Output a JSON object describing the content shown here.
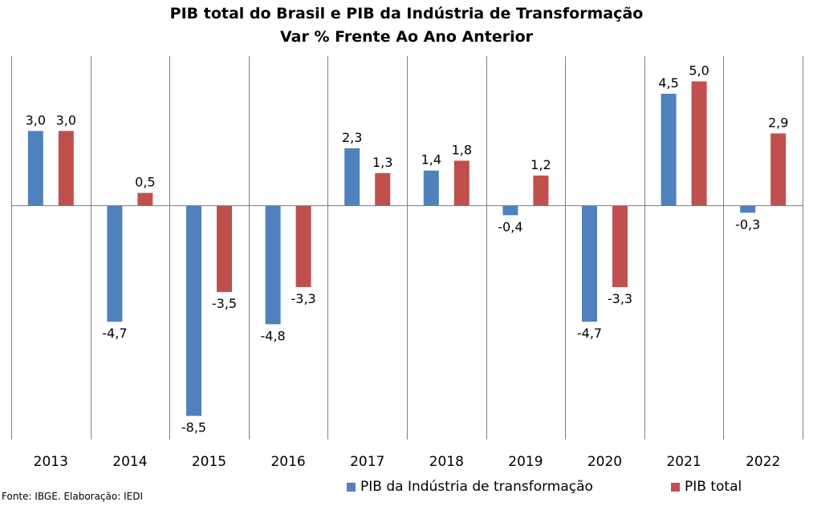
{
  "chart_data": {
    "type": "bar",
    "title": "PIB total do Brasil e PIB da Indústria de Transformação",
    "subtitle": "Var % Frente Ao Ano Anterior",
    "categories": [
      "2013",
      "2014",
      "2015",
      "2016",
      "2017",
      "2018",
      "2019",
      "2020",
      "2021",
      "2022"
    ],
    "series": [
      {
        "name": "PIB da Indústria de transformação",
        "color": "#4F81BD",
        "values": [
          3.0,
          -4.7,
          -8.5,
          -4.8,
          2.3,
          1.4,
          -0.4,
          -4.7,
          4.5,
          -0.3
        ],
        "labels": [
          "3,0",
          "-4,7",
          "-8,5",
          "-4,8",
          "2,3",
          "1,4",
          "-0,4",
          "-4,7",
          "4,5",
          "-0,3"
        ]
      },
      {
        "name": "PIB total",
        "color": "#C0504D",
        "values": [
          3.0,
          0.5,
          -3.5,
          -3.3,
          1.3,
          1.8,
          1.2,
          -3.3,
          5.0,
          2.9
        ],
        "labels": [
          "3,0",
          "0,5",
          "-3,5",
          "-3,3",
          "1,3",
          "1,8",
          "1,2",
          "-3,3",
          "5,0",
          "2,9"
        ]
      }
    ],
    "ylim": [
      -9.5,
      6.0
    ],
    "grid": "vertical separators between categories",
    "legend_position": "bottom"
  },
  "source_note": "Fonte: IBGE. Elaboração: IEDI"
}
